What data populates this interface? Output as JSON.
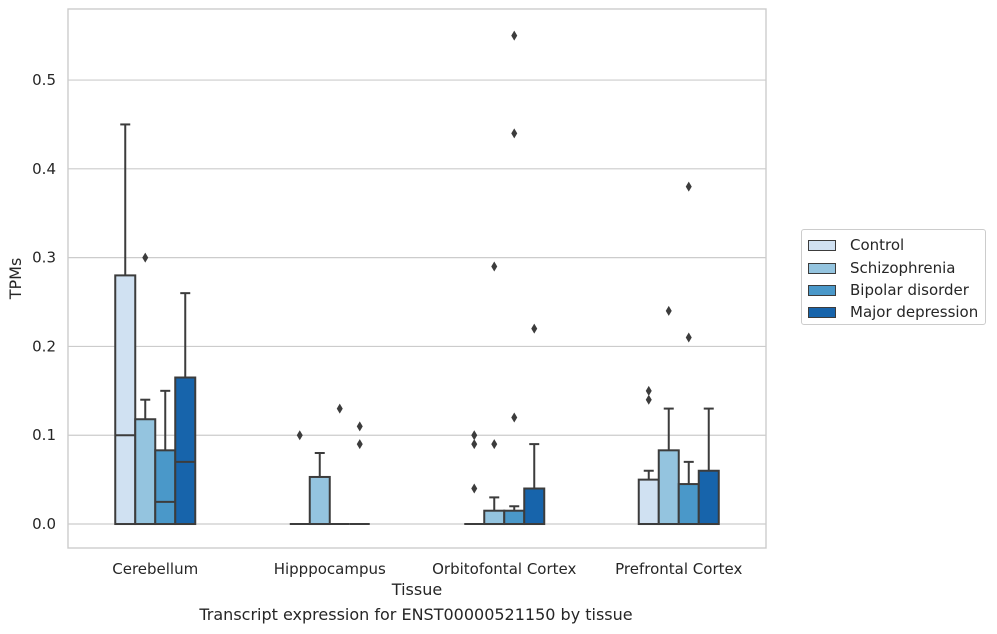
{
  "chart_data": {
    "type": "box",
    "xlabel": "Tissue",
    "ylabel": "TPMs",
    "ylim": [
      -0.027,
      0.58
    ],
    "y_ticks": [
      0.0,
      0.1,
      0.2,
      0.3,
      0.4,
      0.5
    ],
    "y_tick_labels": [
      "0.0",
      "0.1",
      "0.2",
      "0.3",
      "0.4",
      "0.5"
    ],
    "grid": "horizontal",
    "legend_position": "right",
    "categories": [
      "Cerebellum",
      "Hipppocampus",
      "Orbitofontal Cortex",
      "Prefrontal Cortex"
    ],
    "series": [
      {
        "name": "Control",
        "color": "#d0e1f2",
        "boxes": [
          {
            "q1": 0.0,
            "median": 0.1,
            "q3": 0.28,
            "whisker_low": 0.0,
            "whisker_high": 0.45,
            "outliers": []
          },
          {
            "q1": 0.0,
            "median": 0.0,
            "q3": 0.0,
            "whisker_low": 0.0,
            "whisker_high": 0.0,
            "outliers": [
              0.1
            ]
          },
          {
            "q1": 0.0,
            "median": 0.0,
            "q3": 0.0,
            "whisker_low": 0.0,
            "whisker_high": 0.0,
            "outliers": [
              0.1,
              0.09,
              0.04
            ]
          },
          {
            "q1": 0.0,
            "median": 0.0,
            "q3": 0.05,
            "whisker_low": 0.0,
            "whisker_high": 0.06,
            "outliers": [
              0.15,
              0.14
            ]
          }
        ]
      },
      {
        "name": "Schizophrenia",
        "color": "#94c4df",
        "boxes": [
          {
            "q1": 0.0,
            "median": 0.0,
            "q3": 0.118,
            "whisker_low": 0.0,
            "whisker_high": 0.14,
            "outliers": [
              0.3
            ]
          },
          {
            "q1": 0.0,
            "median": 0.0,
            "q3": 0.053,
            "whisker_low": 0.0,
            "whisker_high": 0.08,
            "outliers": []
          },
          {
            "q1": 0.0,
            "median": 0.0,
            "q3": 0.015,
            "whisker_low": 0.0,
            "whisker_high": 0.03,
            "outliers": [
              0.29,
              0.09
            ]
          },
          {
            "q1": 0.0,
            "median": 0.0,
            "q3": 0.083,
            "whisker_low": 0.0,
            "whisker_high": 0.13,
            "outliers": [
              0.24
            ]
          }
        ]
      },
      {
        "name": "Bipolar disorder",
        "color": "#4a98c9",
        "boxes": [
          {
            "q1": 0.0,
            "median": 0.025,
            "q3": 0.083,
            "whisker_low": 0.0,
            "whisker_high": 0.15,
            "outliers": []
          },
          {
            "q1": 0.0,
            "median": 0.0,
            "q3": 0.0,
            "whisker_low": 0.0,
            "whisker_high": 0.0,
            "outliers": [
              0.13
            ]
          },
          {
            "q1": 0.0,
            "median": 0.0,
            "q3": 0.015,
            "whisker_low": 0.0,
            "whisker_high": 0.02,
            "outliers": [
              0.55,
              0.44,
              0.12
            ]
          },
          {
            "q1": 0.0,
            "median": 0.0,
            "q3": 0.045,
            "whisker_low": 0.0,
            "whisker_high": 0.07,
            "outliers": [
              0.38,
              0.21
            ]
          }
        ]
      },
      {
        "name": "Major depression",
        "color": "#1764ab",
        "boxes": [
          {
            "q1": 0.0,
            "median": 0.07,
            "q3": 0.165,
            "whisker_low": 0.0,
            "whisker_high": 0.26,
            "outliers": []
          },
          {
            "q1": 0.0,
            "median": 0.0,
            "q3": 0.0,
            "whisker_low": 0.0,
            "whisker_high": 0.0,
            "outliers": [
              0.11,
              0.09
            ]
          },
          {
            "q1": 0.0,
            "median": 0.0,
            "q3": 0.04,
            "whisker_low": 0.0,
            "whisker_high": 0.09,
            "outliers": [
              0.22
            ]
          },
          {
            "q1": 0.0,
            "median": 0.0,
            "q3": 0.06,
            "whisker_low": 0.0,
            "whisker_high": 0.13,
            "outliers": []
          }
        ]
      }
    ]
  },
  "caption": "Transcript expression for ENST00000521150 by tissue",
  "colors": {
    "grid": "#cccccc",
    "axes_edge": "#cccccc",
    "box_edge": "#3c3c3c",
    "text": "#262626"
  }
}
